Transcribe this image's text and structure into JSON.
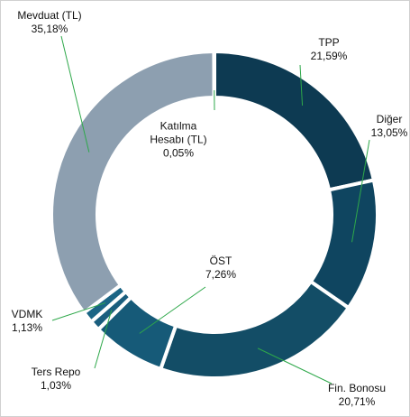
{
  "chart_data": {
    "type": "donut",
    "categories": [
      "TPP",
      "Diğer",
      "Fin. Bonosu",
      "ÖST",
      "Ters Repo",
      "VDMK",
      "Mevduat (TL)",
      "Katılma Hesabı (TL)"
    ],
    "values": [
      21.59,
      13.05,
      20.71,
      7.26,
      1.03,
      1.13,
      35.18,
      0.05
    ],
    "value_labels": [
      "21,59%",
      "13,05%",
      "20,71%",
      "7,26%",
      "1,03%",
      "1,13%",
      "35,18%",
      "0,05%"
    ],
    "colors": [
      "#0d3a52",
      "#0f4560",
      "#134d66",
      "#165a78",
      "#1a5e7e",
      "#1b6585",
      "#8d9fb0",
      "#8d9fb0"
    ]
  }
}
